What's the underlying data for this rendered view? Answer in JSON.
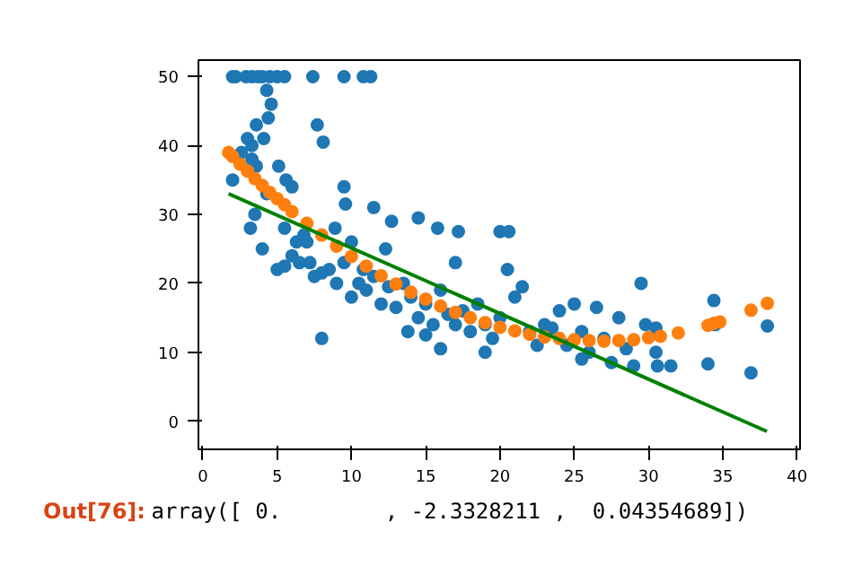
{
  "chart_data": {
    "type": "scatter",
    "marker": "circle",
    "grid": false,
    "xlim": [
      -0.3,
      40.2
    ],
    "ylim": [
      -4.1,
      52.4
    ],
    "xticks": [
      0,
      5,
      10,
      15,
      20,
      25,
      30,
      35,
      40
    ],
    "yticks": [
      0,
      10,
      20,
      30,
      40,
      50
    ],
    "series": [
      {
        "color": "#1f77b4",
        "x": [
          2,
          2.9,
          3.3,
          3.7,
          4.5,
          5.0,
          5.5,
          7.4,
          9.5,
          10.8,
          11.3,
          2.2,
          4.0,
          4.3,
          4.6,
          4.4,
          3.6,
          7.7,
          3.0,
          3.3,
          4.1,
          2.6,
          3.3,
          5.1,
          8.1,
          2.0,
          3.6,
          5.6,
          6.0,
          4.3,
          9.5,
          9.6,
          11.5,
          12.7,
          14.5,
          15.8,
          17.2,
          20.0,
          20.6,
          3.5,
          3.2,
          4.0,
          5.0,
          5.5,
          6,
          6.5,
          7,
          7.5,
          8,
          8.5,
          9,
          9.5,
          10,
          10.5,
          11,
          11.5,
          12,
          12.5,
          13,
          13.5,
          14,
          14.5,
          15,
          15.5,
          16,
          16.5,
          17,
          17.5,
          18,
          18.5,
          19,
          19.5,
          20,
          20.5,
          21,
          21.5,
          22,
          22.5,
          23,
          23.5,
          24,
          24.5,
          25,
          25.5,
          26,
          26.5,
          27,
          27.5,
          28,
          28.5,
          29,
          29.5,
          29.8,
          30.5,
          30.6,
          31.5,
          34,
          34.4,
          34.5,
          36.9,
          38,
          8,
          8.9,
          10,
          6.8,
          12.3,
          17,
          16,
          19,
          5.5,
          6.3,
          7.2,
          10.8,
          13.8,
          15,
          25.5,
          30.5
        ],
        "values": [
          50,
          50,
          50,
          50,
          50,
          50,
          50,
          50,
          50,
          50,
          50,
          50,
          50,
          48,
          46,
          44,
          43,
          43,
          41,
          40,
          41,
          39,
          38,
          37,
          40.5,
          35,
          37,
          35,
          34,
          33,
          34,
          31.5,
          31,
          29,
          29.5,
          28,
          27.5,
          27.5,
          27.5,
          30,
          28,
          25,
          22,
          22.5,
          24,
          23,
          26,
          21,
          21.5,
          22,
          20,
          23,
          18,
          20,
          19,
          21,
          17,
          19.5,
          16.5,
          20,
          18,
          15,
          17,
          14,
          19,
          15.5,
          14,
          16,
          13,
          17,
          14,
          12,
          15,
          22,
          18,
          19.5,
          13,
          11,
          14,
          13.5,
          16,
          11,
          17,
          13,
          10,
          16.5,
          12,
          8.5,
          15,
          10.5,
          8,
          20,
          14,
          13.5,
          8,
          8,
          8.3,
          17.5,
          14,
          7,
          13.8,
          12,
          28,
          26,
          27,
          25,
          23,
          10.5,
          10,
          28,
          26,
          23,
          22,
          13,
          12.5,
          9,
          10
        ]
      },
      {
        "color": "#ff7f0e",
        "x": [
          1.73,
          2,
          2.5,
          3,
          3.5,
          4,
          4.5,
          5,
          5.5,
          6,
          7,
          8,
          9,
          10,
          11,
          12,
          13,
          14,
          15,
          16,
          17,
          18,
          19,
          20,
          21,
          22,
          23,
          24,
          25,
          26,
          27,
          28,
          29,
          30,
          30.8,
          32,
          34,
          34.4,
          34.8,
          36.9,
          38
        ],
        "values": [
          39.0,
          38.4,
          37.3,
          36.3,
          35.2,
          34.2,
          33.2,
          32.3,
          31.4,
          30.4,
          28.7,
          27.0,
          25.4,
          23.9,
          22.5,
          21.1,
          19.9,
          18.7,
          17.7,
          16.7,
          15.8,
          15.0,
          14.3,
          13.6,
          13.1,
          12.6,
          12.2,
          12.0,
          11.8,
          11.7,
          11.6,
          11.7,
          11.8,
          12.1,
          12.3,
          12.8,
          13.9,
          14.2,
          14.4,
          16.1,
          17.1
        ]
      },
      {
        "type": "line",
        "marker": "none",
        "color": "#008000",
        "x": [
          1.73,
          37.97
        ],
        "values": [
          33.0,
          -1.5
        ]
      }
    ],
    "annotations": [
      "Out[76]:",
      "array([ 0.        , -2.3328211 ,  0.04354689])"
    ]
  }
}
